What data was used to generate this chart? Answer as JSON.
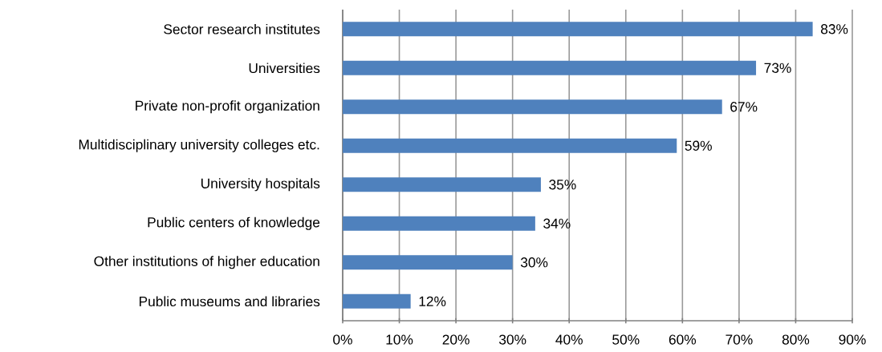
{
  "chart_data": {
    "type": "bar",
    "orientation": "horizontal",
    "categories": [
      "Sector research  institutes",
      "Universities",
      "Private non-profit organization",
      "Multidisciplinary university colleges  etc.",
      "University hospitals",
      "Public centers  of knowledge",
      "Other institutions  of higher education",
      "Public museums  and libraries"
    ],
    "values": [
      83,
      73,
      67,
      59,
      35,
      34,
      30,
      12
    ],
    "value_labels": [
      "83%",
      "73%",
      "67%",
      "59%",
      "35%",
      "34%",
      "30%",
      "12%"
    ],
    "color": "#4f81bd",
    "xlim": [
      0,
      90
    ],
    "xticks": [
      {
        "value": 0,
        "label": "0%"
      },
      {
        "value": 10,
        "label": "10%"
      },
      {
        "value": 20,
        "label": "20%"
      },
      {
        "value": 30,
        "label": "30%"
      },
      {
        "value": 40,
        "label": "40%"
      },
      {
        "value": 50,
        "label": "50%"
      },
      {
        "value": 60,
        "label": "60%"
      },
      {
        "value": 70,
        "label": "70%"
      },
      {
        "value": 80,
        "label": "80%"
      },
      {
        "value": 90,
        "label": "90%"
      }
    ],
    "grid": "x"
  }
}
